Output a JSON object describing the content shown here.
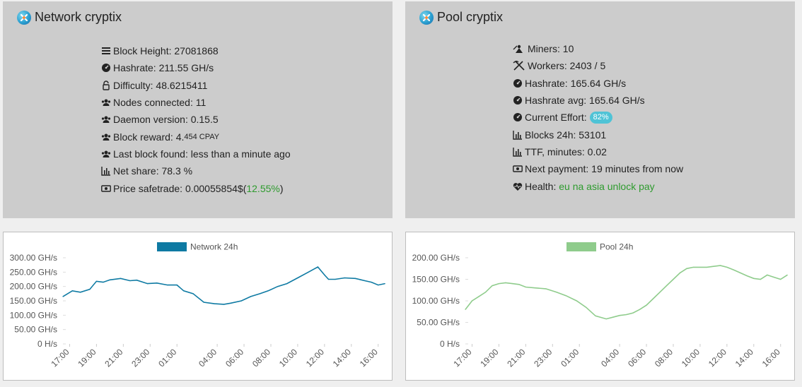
{
  "network": {
    "title": "Network cryptix",
    "block_height": "Block Height: 27081868",
    "hashrate": "Hashrate: 211.55 GH/s",
    "difficulty": "Difficulty: 48.6215411",
    "nodes": "Nodes connected: 11",
    "daemon": "Daemon version: 0.15.5",
    "reward_prefix": "Block reward: 4.",
    "reward_small": "454 CPAY",
    "last_block": "Last block found: less than a minute ago",
    "net_share": "Net share: 78.3 %",
    "price_prefix": "Price safetrade: 0.00055854$(",
    "price_change": "12.55%",
    "price_suffix": ")"
  },
  "pool": {
    "title": "Pool cryptix",
    "miners": "Miners: 10",
    "workers": "Workers: 2403 / 5",
    "hashrate": "Hashrate: 165.64 GH/s",
    "hashrate_avg": "Hashrate avg: 165.64 GH/s",
    "effort_label": "Current Effort:",
    "effort_value": "82%",
    "blocks_24h": "Blocks 24h: 53101",
    "ttf": "TTF, minutes: 0.02",
    "next_payment": "Next payment: 19 minutes from now",
    "health_label": "Health:",
    "health_value": "eu na asia unlock pay"
  },
  "icons": [
    "bars-icon",
    "gauge-icon",
    "unlock-icon",
    "users-icon",
    "bar-chart-icon",
    "money-icon",
    "miner-icon",
    "pickaxe-icon",
    "heart-pulse-icon"
  ],
  "colors": {
    "network": "#0e7aa3",
    "pool": "#8fcc8c",
    "green_text": "#2e9b2e",
    "badge": "#4fc3d6"
  },
  "chart_data": [
    {
      "type": "line",
      "legend": "Network 24h",
      "color": "#0e7aa3",
      "yticks": [
        "300.00 GH/s",
        "250.00 GH/s",
        "200.00 GH/s",
        "150.00 GH/s",
        "100.00 GH/s",
        "50.00 GH/s",
        "0 H/s"
      ],
      "ylim": [
        0,
        300
      ],
      "xticks": [
        "17:00",
        "19:00",
        "21:00",
        "23:00",
        "01:00",
        "04:00",
        "06:00",
        "08:00",
        "10:00",
        "12:00",
        "14:00",
        "16:00"
      ],
      "xlim": [
        16.5,
        40.7
      ],
      "x": [
        16.5,
        17.2,
        17.8,
        18.5,
        19.0,
        19.5,
        20.0,
        20.8,
        21.5,
        22.0,
        22.8,
        23.5,
        24.3,
        25.0,
        25.5,
        26.2,
        27.0,
        27.8,
        28.5,
        29.0,
        29.8,
        30.5,
        31.2,
        31.8,
        32.5,
        33.2,
        34.0,
        34.8,
        35.5,
        36.0,
        36.3,
        36.8,
        37.5,
        38.3,
        39.0,
        39.5,
        40.0,
        40.5
      ],
      "values": [
        165,
        185,
        180,
        190,
        218,
        215,
        223,
        228,
        220,
        222,
        210,
        212,
        205,
        205,
        185,
        175,
        145,
        140,
        138,
        142,
        150,
        165,
        175,
        185,
        200,
        210,
        230,
        250,
        268,
        240,
        225,
        225,
        230,
        228,
        220,
        215,
        205,
        210
      ]
    },
    {
      "type": "line",
      "legend": "Pool 24h",
      "color": "#8fcc8c",
      "yticks": [
        "200.00 GH/s",
        "150.00 GH/s",
        "100.00 GH/s",
        "50.00 GH/s",
        "0 H/s"
      ],
      "ylim": [
        0,
        200
      ],
      "xticks": [
        "17:00",
        "19:00",
        "21:00",
        "23:00",
        "01:00",
        "04:00",
        "06:00",
        "08:00",
        "10:00",
        "12:00",
        "14:00",
        "16:00"
      ],
      "xlim": [
        16.5,
        40.7
      ],
      "x": [
        16.5,
        17.0,
        17.5,
        18.0,
        18.5,
        19.0,
        19.5,
        20.0,
        20.5,
        21.0,
        21.7,
        22.5,
        23.3,
        24.0,
        24.8,
        25.5,
        26.2,
        27.0,
        27.5,
        28.0,
        28.5,
        29.0,
        29.5,
        30.0,
        30.5,
        31.0,
        31.5,
        32.0,
        32.5,
        33.0,
        33.5,
        34.0,
        34.5,
        35.0,
        35.5,
        36.0,
        36.5,
        37.0,
        37.5,
        38.0,
        38.5,
        39.0,
        39.5,
        40.0,
        40.5
      ],
      "values": [
        80,
        100,
        110,
        120,
        135,
        140,
        142,
        140,
        138,
        132,
        130,
        128,
        120,
        112,
        100,
        85,
        65,
        58,
        62,
        66,
        68,
        72,
        80,
        90,
        105,
        120,
        135,
        150,
        165,
        175,
        178,
        178,
        178,
        180,
        182,
        178,
        172,
        165,
        158,
        152,
        150,
        160,
        155,
        150,
        160
      ]
    }
  ]
}
